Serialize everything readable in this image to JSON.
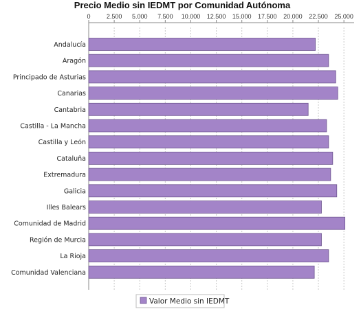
{
  "chart_data": {
    "type": "bar",
    "orientation": "horizontal",
    "title": "Precio Medio sin IEDMT por Comunidad Autónoma",
    "categories": [
      "Andalucía",
      "Aragón",
      "Principado de Asturias",
      "Canarias",
      "Cantabria",
      "Castilla - La Mancha",
      "Castilla y León",
      "Cataluña",
      "Extremadura",
      "Galicia",
      "Illes Balears",
      "Comunidad de Madrid",
      "Región de Murcia",
      "La Rioja",
      "Comunidad Valenciana"
    ],
    "series": [
      {
        "name": "Valor Medio sin IEDMT",
        "values": [
          22200,
          23500,
          24200,
          24400,
          21500,
          23300,
          23500,
          23900,
          23700,
          24300,
          22800,
          25100,
          22800,
          23500,
          22100
        ]
      }
    ],
    "xlim": [
      0,
      26000
    ],
    "xticks": [
      0,
      2500,
      5000,
      7500,
      10000,
      12500,
      15000,
      17500,
      20000,
      22500,
      25000
    ],
    "xtick_labels": [
      "0",
      "2.500",
      "5.000",
      "7.500",
      "10.000",
      "12.500",
      "15.000",
      "17.500",
      "20.000",
      "22.500",
      "25.000"
    ],
    "x_axis_position": "top",
    "grid": true,
    "legend_position": "bottom-center",
    "colors": {
      "bar_fill": "#a384c8",
      "bar_stroke": "#6e5690",
      "grid": "#c8c8c8",
      "axis": "#888888"
    }
  }
}
